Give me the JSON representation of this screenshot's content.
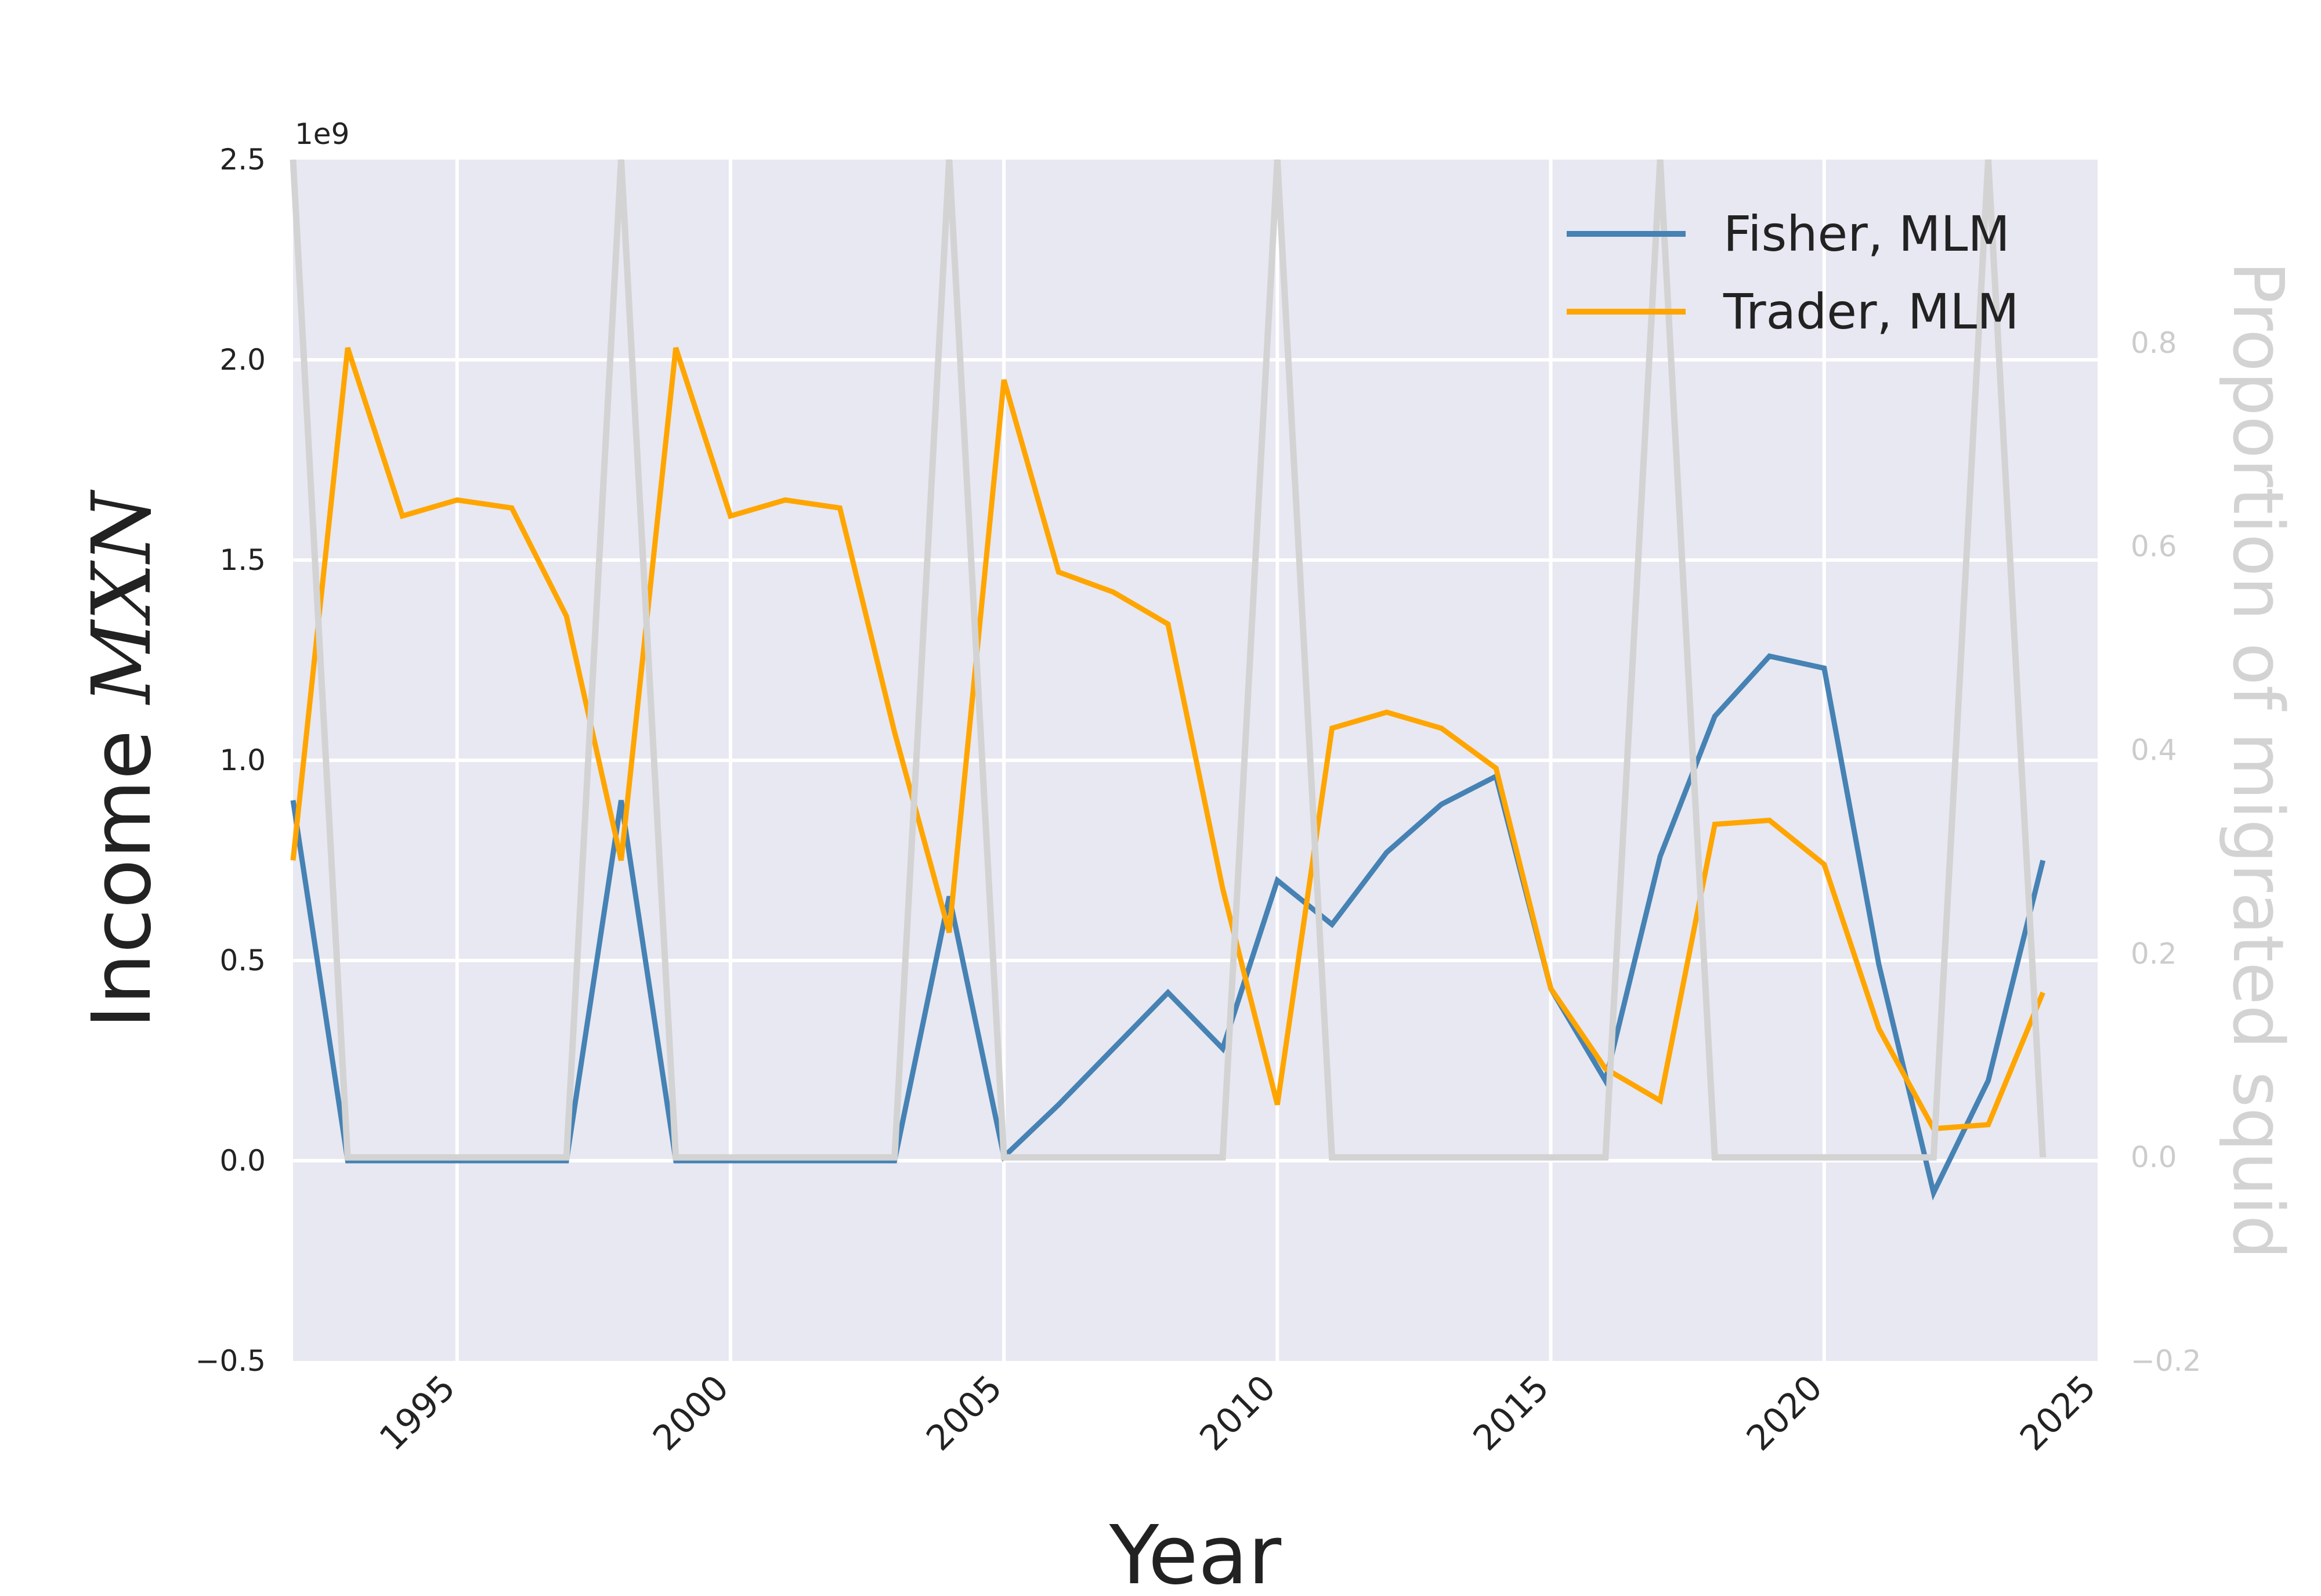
{
  "chart_data": {
    "type": "line",
    "xlabel": "Year",
    "ylabel_left": "Income MXN",
    "ylabel_left_text": "Income ",
    "ylabel_left_math": "MXN",
    "ylabel_right": "Proportion of migrated squid",
    "offset_label": "1e9",
    "xlim": [
      1992,
      2025
    ],
    "ylim_left": [
      -0.5,
      2.5
    ],
    "ylim_right": [
      -0.2,
      0.98
    ],
    "grid": true,
    "legend_position": "top-right",
    "x_ticks": [
      1995,
      2000,
      2005,
      2010,
      2015,
      2020,
      2025
    ],
    "x_tick_labels": [
      "1995",
      "2000",
      "2005",
      "2010",
      "2015",
      "2020",
      "2025"
    ],
    "y_left_ticks": [
      -0.5,
      0.0,
      0.5,
      1.0,
      1.5,
      2.0,
      2.5
    ],
    "y_left_tick_labels": [
      "−0.5",
      "0.0",
      "0.5",
      "1.0",
      "1.5",
      "2.0",
      "2.5"
    ],
    "y_right_ticks": [
      -0.2,
      0.0,
      0.2,
      0.4,
      0.6,
      0.8
    ],
    "y_right_tick_labels": [
      "−0.2",
      "0.0",
      "0.2",
      "0.4",
      "0.6",
      "0.8"
    ],
    "x": [
      1992,
      1993,
      1994,
      1995,
      1996,
      1997,
      1998,
      1999,
      2000,
      2001,
      2002,
      2003,
      2004,
      2005,
      2006,
      2007,
      2008,
      2009,
      2010,
      2011,
      2012,
      2013,
      2014,
      2015,
      2016,
      2017,
      2018,
      2019,
      2020,
      2021,
      2022,
      2023,
      2024
    ],
    "series": [
      {
        "name": "Fisher, MLM",
        "axis": "left",
        "color": "#4682b4",
        "values": [
          0.9,
          0.0,
          0.0,
          0.0,
          0.0,
          0.0,
          0.9,
          0.0,
          0.0,
          0.0,
          0.0,
          0.0,
          0.66,
          0.01,
          0.14,
          0.28,
          0.42,
          0.28,
          0.7,
          0.59,
          0.77,
          0.89,
          0.96,
          0.43,
          0.2,
          0.76,
          1.11,
          1.26,
          1.23,
          0.49,
          -0.08,
          0.2,
          0.75
        ]
      },
      {
        "name": "Trader, MLM",
        "axis": "left",
        "color": "#ffa500",
        "values": [
          0.75,
          2.03,
          1.61,
          1.65,
          1.63,
          1.36,
          0.75,
          2.03,
          1.61,
          1.65,
          1.63,
          1.07,
          0.57,
          1.95,
          1.47,
          1.42,
          1.34,
          0.68,
          0.14,
          1.08,
          1.12,
          1.08,
          0.98,
          0.43,
          0.23,
          0.15,
          0.84,
          0.85,
          0.74,
          0.33,
          0.08,
          0.09,
          0.42
        ]
      },
      {
        "axis": "right",
        "color": "#d3d3d3",
        "values": [
          0.98,
          0.0,
          0.0,
          0.0,
          0.0,
          0.0,
          0.98,
          0.0,
          0.0,
          0.0,
          0.0,
          0.0,
          0.98,
          0.0,
          0.0,
          0.0,
          0.0,
          0.0,
          0.98,
          0.0,
          0.0,
          0.0,
          0.0,
          0.0,
          0.0,
          0.98,
          0.0,
          0.0,
          0.0,
          0.0,
          0.0,
          0.98,
          0.0
        ]
      }
    ]
  }
}
